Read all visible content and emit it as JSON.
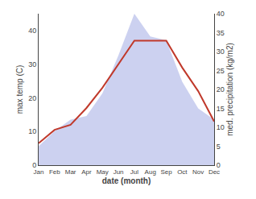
{
  "chart_data": {
    "type": "line",
    "xlabel": "date (month)",
    "ylabel": "max temp (C)",
    "y2label": "med. precipitation (kg/m2)",
    "categories": [
      "Jan",
      "Feb",
      "Mar",
      "Apr",
      "May",
      "Jun",
      "Jul",
      "Aug",
      "Sep",
      "Oct",
      "Nov",
      "Dec"
    ],
    "series": [
      {
        "type": "area",
        "axis": "y2",
        "color": "#b0b8e8",
        "values": [
          5,
          9,
          12,
          13,
          19,
          29,
          40,
          34,
          33,
          22,
          15,
          12
        ]
      },
      {
        "type": "line",
        "color": "#c0392b",
        "values": [
          6.5,
          10.5,
          12,
          17,
          23,
          30,
          37,
          37,
          37,
          29,
          22,
          13
        ]
      }
    ],
    "ylim": [
      0,
      45
    ],
    "yticks": [
      0,
      10,
      20,
      30,
      40
    ],
    "y2lim": [
      0,
      40
    ],
    "y2ticks": [
      0,
      5,
      10,
      15,
      20,
      25,
      30,
      35,
      40
    ],
    "grid": false
  }
}
